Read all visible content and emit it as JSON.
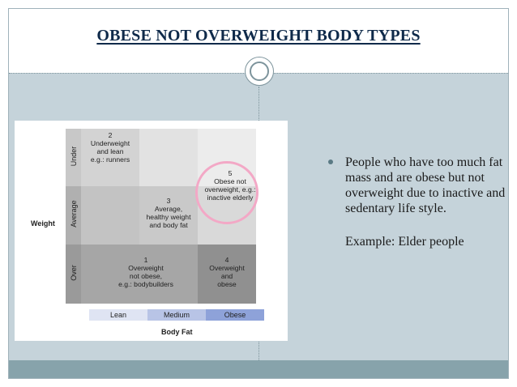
{
  "slide": {
    "title": "OBESE NOT OVERWEIGHT BODY TYPES"
  },
  "figure": {
    "y_axis_title": "Weight",
    "x_axis_title": "Body Fat",
    "weight_levels": [
      "Under",
      "Average",
      "Over"
    ],
    "body_fat_levels": [
      "Lean",
      "Medium",
      "Obese"
    ],
    "cells": {
      "c2": {
        "number": "2",
        "lines": [
          "Underweight",
          "and lean",
          "e.g.: runners"
        ]
      },
      "c3": {
        "number": "3",
        "lines": [
          "Average,",
          "healthy weight",
          "and body fat"
        ]
      },
      "c5": {
        "number": "5",
        "lines": [
          "Obese not",
          "overweight, e.g.:",
          "inactive elderly"
        ]
      },
      "c1": {
        "number": "1",
        "lines": [
          "Overweight",
          "not obese,",
          "e.g.: bodybuilders"
        ]
      },
      "c4": {
        "number": "4",
        "lines": [
          "Overweight",
          "and",
          "obese"
        ]
      }
    }
  },
  "bullet": {
    "text": "People who have too much fat mass and are obese but not overweight due to inactive and sedentary life style.",
    "example": "Example: Elder people"
  },
  "colors": {
    "background": "#c5d3da",
    "footer": "#87a3ab",
    "title": "#0f2a4a",
    "highlight_circle": "#f3a8c6"
  }
}
